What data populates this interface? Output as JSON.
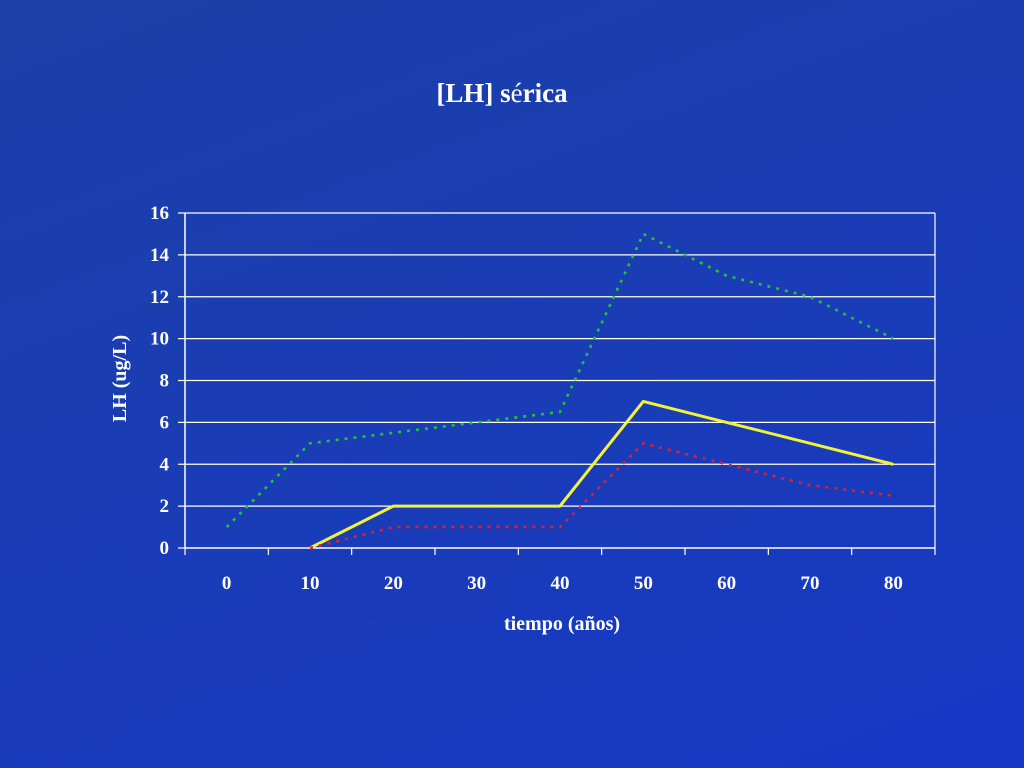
{
  "title": {
    "prefix": "[LH] s",
    "accent": "é",
    "suffix": "rica"
  },
  "chart_data": {
    "type": "line",
    "xlabel": "tiempo (años)",
    "ylabel": "LH (ug/L)",
    "x_ticks": [
      0,
      10,
      20,
      30,
      40,
      50,
      60,
      70,
      80
    ],
    "y_ticks": [
      0,
      2,
      4,
      6,
      8,
      10,
      12,
      14,
      16
    ],
    "xlim": [
      -5,
      85
    ],
    "ylim": [
      0,
      16
    ],
    "grid": "horizontal",
    "legend": "none",
    "series": [
      {
        "color": "#22c33a",
        "style": "dotted",
        "points": [
          [
            0,
            1
          ],
          [
            10,
            5
          ],
          [
            20,
            5.5
          ],
          [
            30,
            6
          ],
          [
            40,
            6.5
          ],
          [
            50,
            15
          ],
          [
            60,
            13
          ],
          [
            70,
            12
          ],
          [
            80,
            10
          ]
        ]
      },
      {
        "color": "#f2f23a",
        "style": "solid",
        "points": [
          [
            10,
            0
          ],
          [
            20,
            2
          ],
          [
            30,
            2
          ],
          [
            40,
            2
          ],
          [
            50,
            7
          ],
          [
            60,
            6
          ],
          [
            70,
            5
          ],
          [
            80,
            4
          ]
        ]
      },
      {
        "color": "#e0202a",
        "style": "dotted",
        "points": [
          [
            10,
            0
          ],
          [
            20,
            1
          ],
          [
            30,
            1
          ],
          [
            40,
            1
          ],
          [
            50,
            5
          ],
          [
            60,
            4
          ],
          [
            70,
            3
          ],
          [
            80,
            2.5
          ]
        ]
      }
    ]
  }
}
